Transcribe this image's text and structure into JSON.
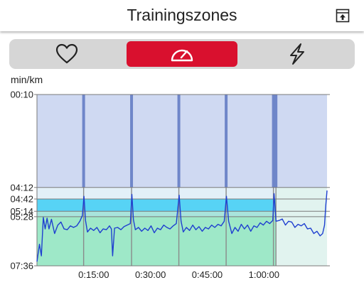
{
  "header": {
    "title": "Trainingszones",
    "export_icon": "export-box-icon"
  },
  "tabs": [
    {
      "id": "heart-rate",
      "icon": "heart-icon",
      "active": false
    },
    {
      "id": "pace",
      "icon": "speedometer-icon",
      "active": true
    },
    {
      "id": "power",
      "icon": "lightning-bolt-icon",
      "active": false
    }
  ],
  "colors": {
    "accent": "#d9102e",
    "zone_top": "#cfd9f2",
    "zone_cyan": "#57d3f5",
    "zone_teal": "#a8e4dc",
    "zone_green": "#9ee8c8",
    "zone_faded": "#dff2ee",
    "line": "#1f3fd0",
    "separator": "#6f86c9"
  },
  "chart_data": {
    "type": "line",
    "ylabel": "min/km",
    "y_ticks": [
      "00:10",
      "04:12",
      "04:42",
      "05:14",
      "05:28",
      "07:36"
    ],
    "y_ticks_seconds": [
      10,
      252,
      282,
      314,
      328,
      456
    ],
    "ylim_seconds": [
      10,
      456
    ],
    "y_reversed": true,
    "x_ticks": [
      "0:15:00",
      "0:30:00",
      "0:45:00",
      "1:00:00"
    ],
    "x_ticks_seconds": [
      900,
      1800,
      2700,
      3600
    ],
    "xlim_seconds": [
      0,
      4600
    ],
    "zones": [
      {
        "from": 10,
        "to": 252,
        "color": "#cfd9f2"
      },
      {
        "from": 252,
        "to": 282,
        "color": "#e3f0f8"
      },
      {
        "from": 282,
        "to": 314,
        "color": "#57d3f5"
      },
      {
        "from": 314,
        "to": 328,
        "color": "#a8e4dc"
      },
      {
        "from": 328,
        "to": 456,
        "color": "#9ee8c8"
      }
    ],
    "lap_splits_seconds": [
      740,
      1500,
      2250,
      3000,
      3750,
      3790
    ],
    "faded_after_seconds": 3790,
    "series": [
      {
        "x": [
          0,
          40,
          70,
          100,
          130,
          160,
          190,
          230,
          280,
          330,
          380,
          430,
          480,
          530,
          580,
          630,
          680,
          720,
          745,
          770,
          800,
          850,
          900,
          950,
          1000,
          1050,
          1100,
          1150,
          1180,
          1200,
          1230,
          1280,
          1330,
          1380,
          1430,
          1480,
          1505,
          1530,
          1560,
          1610,
          1660,
          1710,
          1760,
          1810,
          1860,
          1910,
          1960,
          2010,
          2060,
          2110,
          2160,
          2210,
          2255,
          2285,
          2320,
          2370,
          2420,
          2470,
          2520,
          2570,
          2620,
          2670,
          2720,
          2770,
          2820,
          2870,
          2920,
          2970,
          3005,
          3040,
          3090,
          3140,
          3190,
          3240,
          3290,
          3340,
          3390,
          3440,
          3490,
          3540,
          3590,
          3640,
          3690,
          3740,
          3760,
          3790,
          3840,
          3890,
          3940,
          3990,
          4040,
          4090,
          4140,
          4190,
          4240,
          4290,
          4340,
          4390,
          4440,
          4490,
          4530,
          4560,
          4580,
          4600
        ],
        "y": [
          445,
          400,
          430,
          330,
          360,
          332,
          360,
          335,
          372,
          350,
          342,
          360,
          362,
          352,
          356,
          352,
          340,
          325,
          275,
          338,
          368,
          358,
          364,
          356,
          370,
          360,
          362,
          352,
          360,
          430,
          358,
          356,
          362,
          354,
          350,
          346,
          270,
          336,
          362,
          356,
          366,
          358,
          364,
          352,
          370,
          358,
          362,
          350,
          356,
          360,
          352,
          346,
          272,
          340,
          368,
          356,
          364,
          350,
          362,
          354,
          366,
          356,
          360,
          350,
          356,
          348,
          352,
          340,
          275,
          340,
          372,
          356,
          366,
          348,
          360,
          350,
          366,
          352,
          356,
          344,
          350,
          340,
          346,
          338,
          268,
          340,
          338,
          334,
          350,
          340,
          342,
          356,
          348,
          352,
          346,
          360,
          358,
          372,
          366,
          378,
          372,
          350,
          300,
          260
        ]
      }
    ]
  }
}
